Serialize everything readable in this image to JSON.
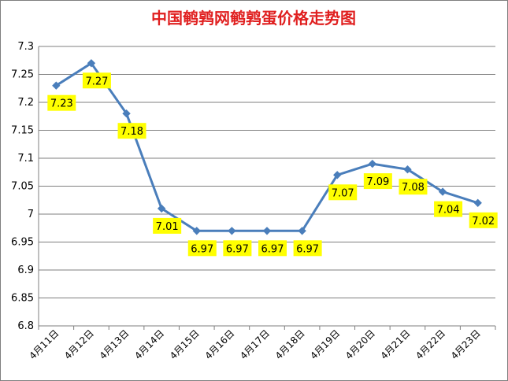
{
  "chart_data": {
    "type": "line",
    "title": "中国鹌鹑网鹌鹑蛋价格走势图",
    "xlabel": "",
    "ylabel": "",
    "categories": [
      "4月11日",
      "4月12日",
      "4月13日",
      "4月14日",
      "4月15日",
      "4月16日",
      "4月17日",
      "4月18日",
      "4月19日",
      "4月20日",
      "4月21日",
      "4月22日",
      "4月23日"
    ],
    "series": [
      {
        "values": [
          7.23,
          7.27,
          7.18,
          7.01,
          6.97,
          6.97,
          6.97,
          6.97,
          7.07,
          7.09,
          7.08,
          7.04,
          7.02
        ]
      }
    ],
    "data_labels": [
      "7.23",
      "7.27",
      "7.18",
      "7.01",
      "6.97",
      "6.97",
      "6.97",
      "6.97",
      "7.07",
      "7.09",
      "7.08",
      "7.04",
      "7.02"
    ],
    "ylim": [
      6.8,
      7.3
    ],
    "y_ticks": [
      "6.8",
      "6.85",
      "6.9",
      "6.95",
      "7",
      "7.05",
      "7.1",
      "7.15",
      "7.2",
      "7.25",
      "7.3"
    ],
    "grid": "horizontal",
    "legend": "none",
    "colors": {
      "line": "#4a7ebb",
      "title": "#e02020",
      "label_bg": "#ffff00",
      "grid": "#7f7f7f"
    }
  }
}
